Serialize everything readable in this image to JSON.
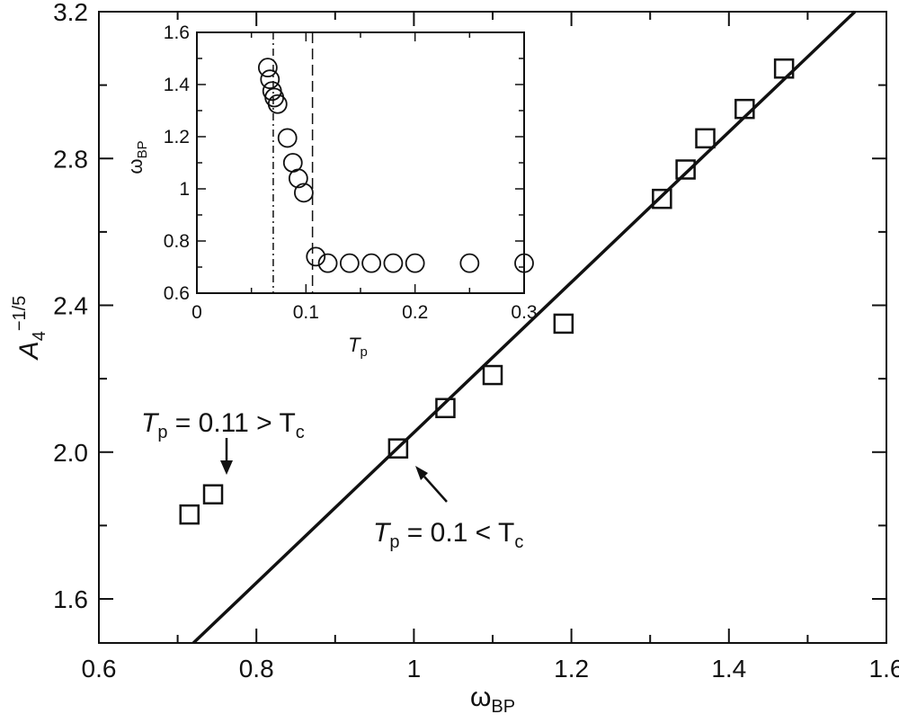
{
  "chart_data": [
    {
      "type": "scatter",
      "xlabel": "ω",
      "xlabel_sub": "BP",
      "ylabel": "A",
      "ylabel_sub": "4",
      "ylabel_sup": "−1/5",
      "xlim": [
        0.6,
        1.6
      ],
      "ylim": [
        1.48,
        3.2
      ],
      "xticks": [
        0.6,
        0.8,
        1,
        1.2,
        1.4,
        1.6
      ],
      "xtick_labels": [
        "0.6",
        "0.8",
        "1",
        "1.2",
        "1.4",
        "1.6"
      ],
      "yticks": [
        1.6,
        2.0,
        2.4,
        2.8,
        3.2
      ],
      "ytick_labels": [
        "1.6",
        "2.0",
        "2.4",
        "2.8",
        "3.2"
      ],
      "grid": false,
      "series": [
        {
          "marker": "square",
          "x": [
            0.715,
            0.745,
            0.98,
            1.04,
            1.1,
            1.19,
            1.315,
            1.345,
            1.37,
            1.42,
            1.47
          ],
          "y": [
            1.83,
            1.885,
            2.01,
            2.12,
            2.21,
            2.35,
            2.69,
            2.77,
            2.855,
            2.935,
            3.045
          ]
        }
      ],
      "fit_line": {
        "x": [
          0.72,
          1.56
        ],
        "y": [
          1.48,
          3.2
        ]
      },
      "annotations": [
        {
          "label": "T",
          "sub": "p",
          "rest": " = 0.11 > T",
          "sub2": "c",
          "arrow_to": [
            0.745,
            1.92
          ]
        },
        {
          "label": "T",
          "sub": "p",
          "rest": " = 0.1 < T",
          "sub2": "c",
          "arrow_to": [
            0.985,
            1.975
          ]
        }
      ]
    },
    {
      "type": "scatter",
      "inset": true,
      "xlabel": "T",
      "xlabel_sub": "p",
      "ylabel": "ω",
      "ylabel_sub": "BP",
      "xlim": [
        0,
        0.3
      ],
      "ylim": [
        0.6,
        1.6
      ],
      "xticks": [
        0,
        0.1,
        0.2,
        0.3
      ],
      "xtick_labels": [
        "0",
        "0.1",
        "0.2",
        "0.3"
      ],
      "yticks": [
        0.6,
        0.8,
        1,
        1.2,
        1.4,
        1.6
      ],
      "ytick_labels": [
        "0.6",
        "0.8",
        "1",
        "1.2",
        "1.4",
        "1.6"
      ],
      "grid": false,
      "series": [
        {
          "marker": "circle",
          "x": [
            0.065,
            0.067,
            0.069,
            0.071,
            0.074,
            0.083,
            0.088,
            0.093,
            0.098,
            0.109,
            0.12,
            0.14,
            0.16,
            0.18,
            0.2,
            0.25,
            0.3
          ],
          "y": [
            1.465,
            1.42,
            1.375,
            1.35,
            1.325,
            1.195,
            1.1,
            1.04,
            0.985,
            0.74,
            0.715,
            0.715,
            0.715,
            0.715,
            0.715,
            0.715,
            0.715
          ]
        }
      ],
      "vlines": [
        {
          "x": 0.07,
          "style": "dashdot"
        },
        {
          "x": 0.106,
          "style": "dashed"
        }
      ]
    }
  ]
}
